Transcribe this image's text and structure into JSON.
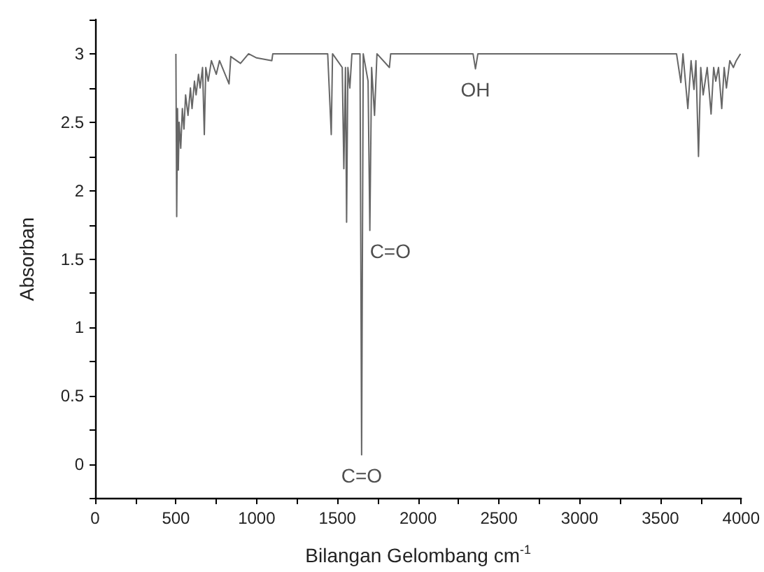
{
  "chart_data": {
    "type": "line",
    "xlabel": "Bilangan Gelombang cm$^{-1}$",
    "ylabel": "Absorban",
    "x": [
      500,
      505,
      510,
      515,
      520,
      530,
      540,
      550,
      560,
      575,
      590,
      600,
      615,
      625,
      640,
      650,
      665,
      676,
      685,
      700,
      720,
      750,
      770,
      829,
      840,
      900,
      950,
      1000,
      1094,
      1100,
      1200,
      1440,
      1462,
      1470,
      1530,
      1540,
      1550,
      1557,
      1565,
      1577,
      1590,
      1640,
      1650,
      1660,
      1690,
      1701,
      1712,
      1730,
      1745,
      1822,
      1830,
      2340,
      2355,
      2370,
      3600,
      3627,
      3640,
      3670,
      3690,
      3708,
      3720,
      3736,
      3750,
      3765,
      3790,
      3814,
      3830,
      3843,
      3860,
      3880,
      3895,
      3909,
      3930,
      3952,
      3970,
      3996
    ],
    "series": [
      {
        "color": "#666666",
        "values": [
          3.0,
          1.81,
          2.6,
          2.15,
          2.5,
          2.31,
          2.6,
          2.45,
          2.7,
          2.55,
          2.75,
          2.6,
          2.8,
          2.7,
          2.85,
          2.75,
          2.9,
          2.41,
          2.9,
          2.8,
          2.95,
          2.85,
          2.95,
          2.78,
          2.98,
          2.93,
          3.0,
          2.97,
          2.95,
          3.0,
          3.0,
          3.0,
          2.41,
          3.0,
          2.9,
          2.16,
          2.9,
          1.77,
          2.9,
          2.75,
          3.0,
          3.0,
          0.07,
          3.0,
          2.8,
          1.71,
          2.9,
          2.55,
          3.0,
          2.9,
          3.0,
          3.0,
          2.89,
          3.0,
          3.0,
          2.79,
          3.0,
          2.6,
          2.95,
          2.74,
          2.95,
          2.25,
          2.9,
          2.7,
          2.9,
          2.56,
          2.9,
          2.8,
          2.9,
          2.6,
          2.9,
          2.75,
          2.95,
          2.9,
          2.95,
          3.0
        ]
      }
    ],
    "xlim": [
      0,
      4000
    ],
    "xticks": [
      0,
      {
        "value": 250,
        "label": null
      },
      500,
      {
        "value": 750,
        "label": null
      },
      1000,
      {
        "value": 1250,
        "label": null
      },
      1500,
      {
        "value": 1750,
        "label": null
      },
      2000,
      {
        "value": 2250,
        "label": null
      },
      2500,
      {
        "value": 2750,
        "label": null
      },
      3000,
      {
        "value": 3250,
        "label": null
      },
      3500,
      {
        "value": 3750,
        "label": null
      },
      4000
    ],
    "ylim": [
      -0.25,
      3.25
    ],
    "yticks": [
      {
        "value": -0.25,
        "label": null
      },
      0.0,
      {
        "value": 0.25,
        "label": null
      },
      0.5,
      {
        "value": 0.75,
        "label": null
      },
      1.0,
      {
        "value": 1.25,
        "label": null
      },
      1.5,
      {
        "value": 1.75,
        "label": null
      },
      2.0,
      {
        "value": 2.25,
        "label": null
      },
      2.5,
      {
        "value": 2.75,
        "label": null
      },
      3.0,
      {
        "value": 3.25,
        "label": null
      }
    ],
    "annotations": [
      {
        "text": "C=O",
        "x": 1650,
        "y": 0.07
      },
      {
        "text": "C=O",
        "x": 1701,
        "y": 1.71
      },
      {
        "text": "OH",
        "x": 2355,
        "y": 2.89
      }
    ],
    "grid": false,
    "marker": "none",
    "line_style": "solid"
  }
}
